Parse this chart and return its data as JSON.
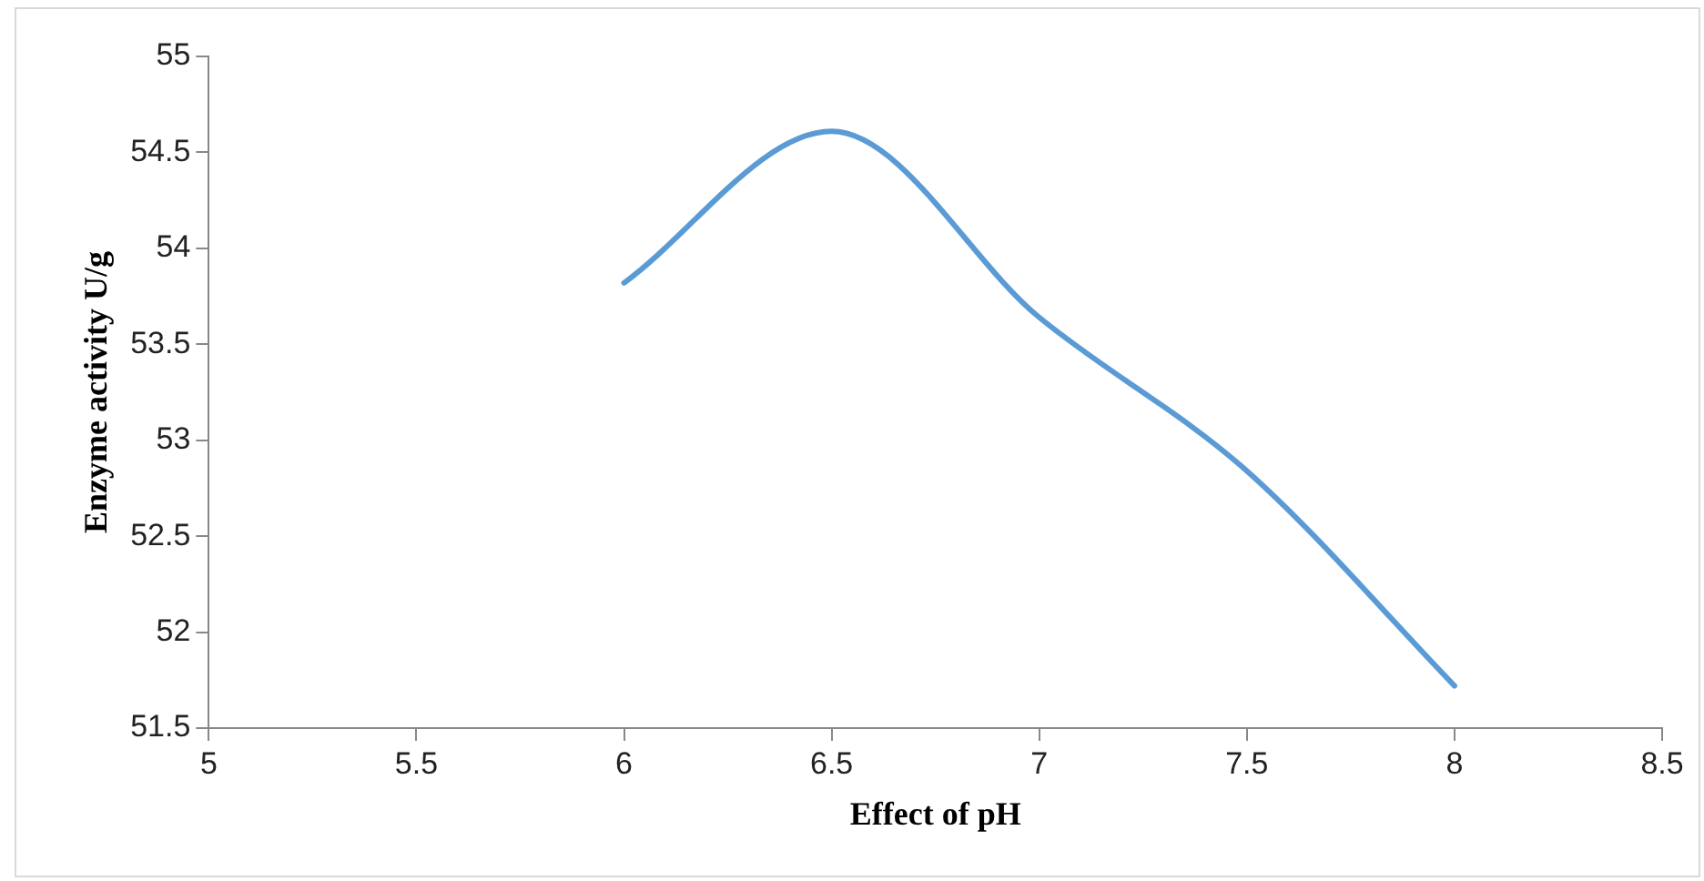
{
  "chart_data": {
    "type": "line",
    "xlabel": "Effect of pH",
    "ylabel": "Enzyme activity U/g",
    "x": [
      6,
      6.5,
      7,
      7.5,
      8
    ],
    "series": [
      {
        "color": "#5b9bd5",
        "values": [
          53.82,
          54.61,
          53.64,
          52.84,
          51.72
        ]
      }
    ],
    "xlim": [
      5,
      8.5
    ],
    "xticks": [
      5,
      5.5,
      6,
      6.5,
      7,
      7.5,
      8,
      8.5
    ],
    "ylim": [
      51.5,
      55
    ],
    "yticks": [
      51.5,
      52,
      52.5,
      53,
      53.5,
      54,
      54.5,
      55
    ],
    "grid": false,
    "legend": false,
    "marker": "none",
    "line_style": "solid"
  }
}
